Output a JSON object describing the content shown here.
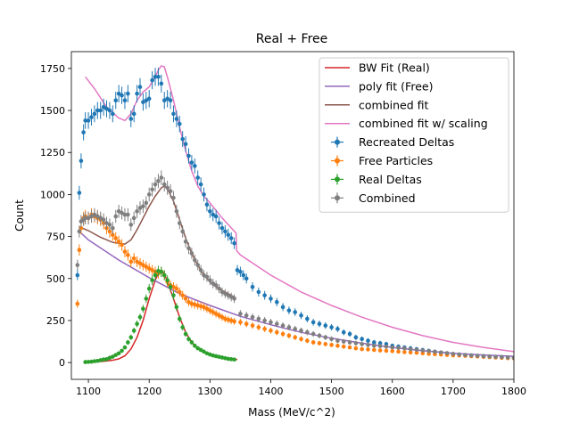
{
  "chart_data": {
    "type": "scatter",
    "title": "Real + Free",
    "xlabel": "Mass (MeV/c^2)",
    "ylabel": "Count",
    "xlim": [
      1072,
      1800
    ],
    "ylim": [
      -100,
      1850
    ],
    "xticks": [
      1100,
      1200,
      1300,
      1400,
      1500,
      1600,
      1700,
      1800
    ],
    "yticks": [
      0,
      250,
      500,
      750,
      1000,
      1250,
      1500,
      1750
    ],
    "grid": false,
    "legend_position": "top-right",
    "fits": [
      {
        "name": "BW Fit (Real)",
        "color": "#d62728",
        "x": [
          1095,
          1110,
          1120,
          1130,
          1140,
          1150,
          1160,
          1170,
          1180,
          1190,
          1200,
          1210,
          1215,
          1220,
          1225,
          1230,
          1240,
          1250,
          1260,
          1270,
          1280,
          1290,
          1300,
          1320,
          1345
        ],
        "y": [
          2,
          4,
          6,
          9,
          14,
          22,
          40,
          80,
          150,
          250,
          380,
          490,
          530,
          545,
          530,
          480,
          380,
          270,
          180,
          120,
          85,
          60,
          45,
          28,
          18
        ]
      },
      {
        "name": "poly fit (Free)",
        "color": "#9467bd",
        "x": [
          1085,
          1100,
          1150,
          1200,
          1250,
          1300,
          1350,
          1400,
          1450,
          1500,
          1550,
          1600,
          1650,
          1700,
          1750,
          1800
        ],
        "y": [
          780,
          730,
          610,
          505,
          410,
          340,
          275,
          225,
          180,
          145,
          115,
          90,
          70,
          55,
          45,
          37
        ]
      },
      {
        "name": "combined fit",
        "color": "#8c564b",
        "x": [
          1090,
          1100,
          1120,
          1140,
          1160,
          1170,
          1180,
          1190,
          1200,
          1210,
          1220,
          1225,
          1230,
          1240,
          1250,
          1260,
          1270,
          1280,
          1290,
          1300,
          1310,
          1320,
          1330,
          1340,
          1343
        ],
        "y": [
          800,
          785,
          745,
          715,
          705,
          730,
          790,
          860,
          930,
          990,
          1040,
          1050,
          1035,
          960,
          850,
          740,
          650,
          580,
          520,
          480,
          450,
          430,
          410,
          390,
          385
        ]
      },
      {
        "name": "combined fit w/ scaling",
        "color": "#e377c2",
        "x": [
          1095,
          1110,
          1130,
          1150,
          1160,
          1170,
          1180,
          1190,
          1200,
          1210,
          1215,
          1220,
          1225,
          1230,
          1240,
          1250,
          1260,
          1270,
          1280,
          1290,
          1300,
          1320,
          1343,
          1344,
          1350,
          1400,
          1450,
          1500,
          1550,
          1600,
          1650,
          1700,
          1750,
          1800
        ],
        "y": [
          1700,
          1630,
          1520,
          1455,
          1440,
          1480,
          1560,
          1610,
          1640,
          1700,
          1740,
          1765,
          1760,
          1700,
          1560,
          1400,
          1260,
          1140,
          1050,
          990,
          950,
          860,
          770,
          665,
          640,
          520,
          420,
          340,
          270,
          210,
          160,
          120,
          90,
          65
        ]
      }
    ],
    "series": [
      {
        "name": "Recreated Deltas",
        "color": "#1f77b4",
        "x": [
          1082,
          1085,
          1088,
          1092,
          1095,
          1100,
          1105,
          1110,
          1115,
          1120,
          1125,
          1130,
          1135,
          1140,
          1145,
          1150,
          1155,
          1160,
          1165,
          1170,
          1175,
          1180,
          1185,
          1190,
          1195,
          1200,
          1205,
          1210,
          1215,
          1220,
          1225,
          1230,
          1235,
          1240,
          1245,
          1250,
          1255,
          1260,
          1265,
          1270,
          1275,
          1280,
          1285,
          1290,
          1295,
          1300,
          1305,
          1310,
          1315,
          1320,
          1325,
          1330,
          1335,
          1340,
          1345,
          1350,
          1355,
          1360,
          1370,
          1380,
          1390,
          1400,
          1410,
          1420,
          1430,
          1440,
          1450,
          1460,
          1470,
          1480,
          1490,
          1500,
          1510,
          1520,
          1530,
          1540,
          1550,
          1560,
          1570,
          1580,
          1590,
          1600,
          1610,
          1620,
          1630,
          1640,
          1650,
          1660,
          1670,
          1680,
          1690,
          1700,
          1710,
          1720,
          1730,
          1740,
          1750,
          1760,
          1770,
          1780,
          1790,
          1800
        ],
        "y": [
          520,
          1010,
          1200,
          1370,
          1440,
          1440,
          1460,
          1480,
          1500,
          1500,
          1520,
          1510,
          1500,
          1480,
          1560,
          1600,
          1590,
          1560,
          1600,
          1450,
          1480,
          1600,
          1640,
          1550,
          1560,
          1570,
          1680,
          1700,
          1700,
          1660,
          1560,
          1570,
          1560,
          1480,
          1450,
          1420,
          1330,
          1300,
          1230,
          1190,
          1170,
          1100,
          1060,
          1000,
          940,
          900,
          880,
          870,
          830,
          800,
          780,
          760,
          740,
          710,
          550,
          540,
          520,
          500,
          450,
          420,
          400,
          380,
          360,
          330,
          310,
          300,
          280,
          260,
          240,
          230,
          220,
          210,
          200,
          180,
          170,
          150,
          140,
          130,
          120,
          115,
          110,
          100,
          95,
          90,
          85,
          80,
          75,
          70,
          65,
          60,
          55,
          50,
          48,
          45,
          43,
          40,
          38,
          36,
          34,
          32,
          30,
          28
        ]
      },
      {
        "name": "Free Particles",
        "color": "#ff7f0e",
        "x": [
          1082,
          1085,
          1088,
          1092,
          1095,
          1100,
          1105,
          1110,
          1115,
          1120,
          1125,
          1130,
          1135,
          1140,
          1145,
          1150,
          1155,
          1160,
          1165,
          1170,
          1175,
          1180,
          1185,
          1190,
          1195,
          1200,
          1205,
          1210,
          1215,
          1220,
          1225,
          1230,
          1235,
          1240,
          1245,
          1250,
          1255,
          1260,
          1265,
          1270,
          1275,
          1280,
          1285,
          1290,
          1295,
          1300,
          1305,
          1310,
          1315,
          1320,
          1325,
          1330,
          1335,
          1340,
          1350,
          1360,
          1370,
          1380,
          1390,
          1400,
          1410,
          1420,
          1430,
          1440,
          1450,
          1460,
          1470,
          1480,
          1490,
          1500,
          1510,
          1520,
          1530,
          1540,
          1550,
          1560,
          1570,
          1580,
          1590,
          1600,
          1610,
          1620,
          1630,
          1640,
          1650,
          1660,
          1670,
          1680,
          1690,
          1700,
          1710,
          1720,
          1730,
          1740,
          1750,
          1760,
          1770,
          1780,
          1790,
          1800
        ],
        "y": [
          350,
          670,
          800,
          860,
          870,
          860,
          880,
          870,
          860,
          850,
          830,
          800,
          780,
          760,
          740,
          720,
          700,
          660,
          640,
          600,
          620,
          600,
          590,
          580,
          570,
          560,
          550,
          540,
          530,
          540,
          520,
          480,
          460,
          450,
          440,
          420,
          400,
          380,
          360,
          350,
          345,
          340,
          335,
          330,
          320,
          310,
          300,
          290,
          280,
          270,
          260,
          255,
          250,
          245,
          240,
          230,
          220,
          210,
          200,
          190,
          180,
          170,
          160,
          150,
          140,
          130,
          120,
          115,
          110,
          105,
          100,
          95,
          90,
          85,
          80,
          78,
          75,
          72,
          70,
          68,
          65,
          62,
          60,
          58,
          55,
          52,
          50,
          48,
          45,
          43,
          42,
          40,
          38,
          36,
          34,
          32,
          30,
          28,
          26,
          25
        ]
      },
      {
        "name": "Real Deltas",
        "color": "#2ca02c",
        "x": [
          1095,
          1100,
          1105,
          1110,
          1115,
          1120,
          1125,
          1130,
          1135,
          1140,
          1145,
          1150,
          1155,
          1160,
          1165,
          1170,
          1175,
          1180,
          1185,
          1190,
          1195,
          1200,
          1205,
          1210,
          1215,
          1220,
          1225,
          1230,
          1235,
          1240,
          1245,
          1250,
          1255,
          1260,
          1265,
          1270,
          1275,
          1280,
          1285,
          1290,
          1295,
          1300,
          1305,
          1310,
          1315,
          1320,
          1325,
          1330,
          1335,
          1340
        ],
        "y": [
          3,
          4,
          5,
          8,
          10,
          14,
          18,
          20,
          28,
          35,
          45,
          55,
          70,
          90,
          120,
          150,
          190,
          230,
          270,
          320,
          380,
          440,
          490,
          520,
          545,
          540,
          520,
          490,
          450,
          400,
          330,
          260,
          210,
          170,
          140,
          120,
          100,
          85,
          75,
          65,
          55,
          48,
          42,
          38,
          34,
          30,
          26,
          22,
          20,
          18
        ]
      },
      {
        "name": "Combined",
        "color": "#7f7f7f",
        "x": [
          1082,
          1085,
          1088,
          1092,
          1095,
          1100,
          1105,
          1110,
          1115,
          1120,
          1125,
          1130,
          1135,
          1140,
          1145,
          1150,
          1155,
          1160,
          1165,
          1170,
          1175,
          1180,
          1185,
          1190,
          1195,
          1200,
          1205,
          1210,
          1215,
          1220,
          1225,
          1230,
          1235,
          1240,
          1245,
          1250,
          1255,
          1260,
          1265,
          1270,
          1275,
          1280,
          1285,
          1290,
          1295,
          1300,
          1305,
          1310,
          1315,
          1320,
          1325,
          1330,
          1335,
          1340,
          1350,
          1360,
          1370,
          1380,
          1390,
          1400,
          1410,
          1420,
          1430,
          1440,
          1450,
          1460,
          1470,
          1480,
          1490,
          1500,
          1510,
          1520,
          1530,
          1540,
          1550,
          1560,
          1570,
          1580,
          1590,
          1600,
          1610,
          1620,
          1630,
          1640,
          1650,
          1660,
          1670,
          1680,
          1690,
          1700,
          1710,
          1720,
          1730,
          1740,
          1750,
          1760,
          1770,
          1780,
          1790,
          1800
        ],
        "y": [
          580,
          780,
          840,
          850,
          860,
          860,
          870,
          880,
          870,
          860,
          850,
          830,
          820,
          800,
          870,
          900,
          890,
          880,
          880,
          820,
          860,
          900,
          920,
          930,
          950,
          1000,
          1030,
          1060,
          1080,
          1100,
          1060,
          1040,
          1020,
          980,
          900,
          830,
          780,
          720,
          680,
          650,
          610,
          580,
          550,
          520,
          510,
          490,
          470,
          460,
          440,
          420,
          410,
          400,
          390,
          380,
          290,
          280,
          270,
          260,
          250,
          240,
          230,
          220,
          210,
          200,
          190,
          180,
          170,
          160,
          150,
          140,
          130,
          125,
          120,
          115,
          110,
          105,
          100,
          98,
          95,
          90,
          88,
          85,
          80,
          76,
          72,
          68,
          64,
          60,
          56,
          52,
          48,
          45,
          42,
          40,
          38,
          36,
          34,
          32,
          30,
          28
        ]
      }
    ]
  }
}
